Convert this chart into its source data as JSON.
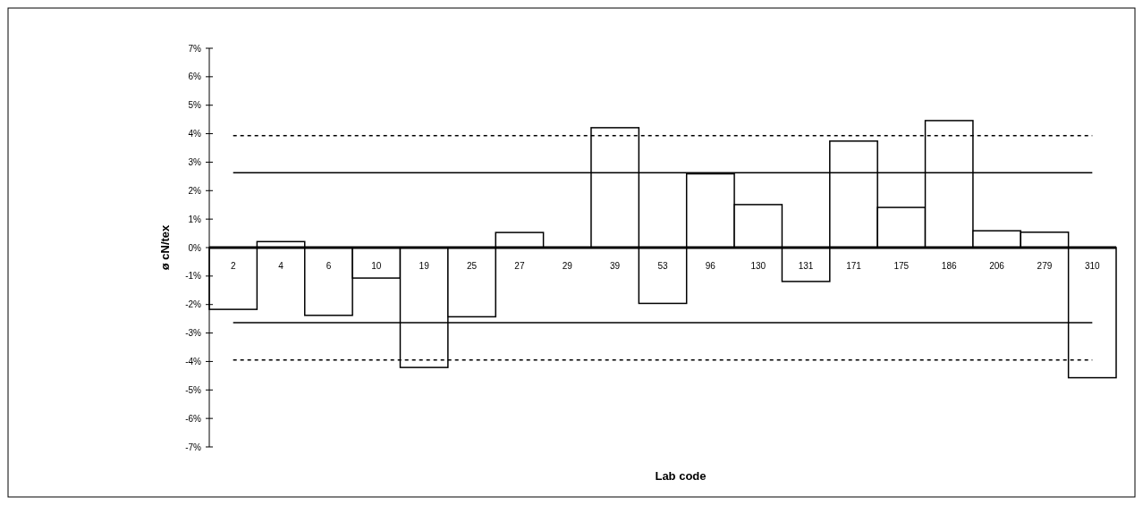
{
  "chart_data": {
    "type": "bar",
    "xlabel": "Lab code",
    "ylabel": "ø cN/tex",
    "categories": [
      "2",
      "4",
      "6",
      "10",
      "19",
      "25",
      "27",
      "29",
      "39",
      "53",
      "96",
      "130",
      "131",
      "171",
      "175",
      "186",
      "206",
      "279",
      "310"
    ],
    "values": [
      -2.17,
      0.21,
      -2.38,
      -1.07,
      -4.21,
      -2.43,
      0.53,
      0,
      4.21,
      -1.96,
      2.59,
      1.51,
      -1.19,
      3.74,
      1.41,
      4.46,
      0.59,
      0.54,
      -4.57
    ],
    "color": "#ffffff",
    "ylim": [
      -7,
      7
    ],
    "yticks": [
      {
        "value": -7,
        "label": "-7%"
      },
      {
        "value": -6,
        "label": "-6%"
      },
      {
        "value": -5,
        "label": "-5%"
      },
      {
        "value": -4,
        "label": "-4%"
      },
      {
        "value": -3,
        "label": "-3%"
      },
      {
        "value": -2,
        "label": "-2%"
      },
      {
        "value": -1,
        "label": "-1%"
      },
      {
        "value": 0,
        "label": "0%"
      },
      {
        "value": 1,
        "label": "1%"
      },
      {
        "value": 2,
        "label": "2%"
      },
      {
        "value": 3,
        "label": "3%"
      },
      {
        "value": 4,
        "label": "4%"
      },
      {
        "value": 5,
        "label": "5%"
      },
      {
        "value": 6,
        "label": "6%"
      },
      {
        "value": 7,
        "label": "7%"
      }
    ],
    "ref_lines": [
      {
        "axis": "y",
        "value": 3.93,
        "color": "#000000",
        "line_style": "dashed"
      },
      {
        "axis": "y",
        "value": 2.63,
        "color": "#000000",
        "line_style": "solid"
      },
      {
        "axis": "y",
        "value": -2.64,
        "color": "#000000",
        "line_style": "solid"
      },
      {
        "axis": "y",
        "value": -3.95,
        "color": "#000000",
        "line_style": "dashed"
      }
    ],
    "grid": false
  }
}
